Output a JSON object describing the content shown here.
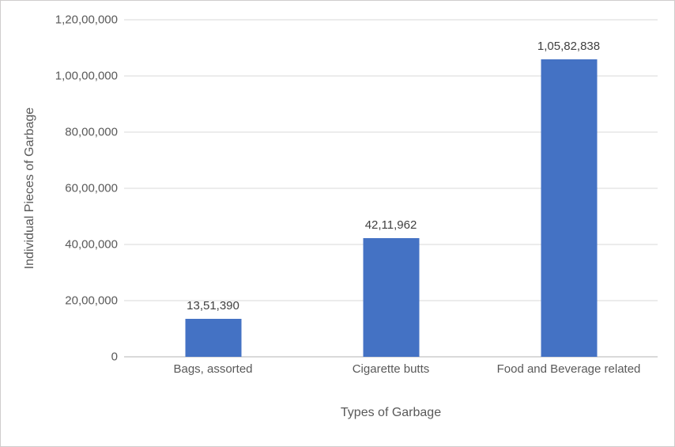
{
  "chart_data": {
    "type": "bar",
    "title": "",
    "xlabel": "Types of Garbage",
    "ylabel": "Individual Pieces of Garbage",
    "categories": [
      "Bags, assorted",
      "Cigarette butts",
      "Food and Beverage related"
    ],
    "values": [
      1351390,
      4211962,
      10582838
    ],
    "value_labels": [
      "13,51,390",
      "42,11,962",
      "1,05,82,838"
    ],
    "ylim": [
      0,
      12000000
    ],
    "yticks": [
      {
        "value": 0,
        "label": "0"
      },
      {
        "value": 2000000,
        "label": "20,00,000"
      },
      {
        "value": 4000000,
        "label": "40,00,000"
      },
      {
        "value": 6000000,
        "label": "60,00,000"
      },
      {
        "value": 8000000,
        "label": "80,00,000"
      },
      {
        "value": 10000000,
        "label": "1,00,00,000"
      },
      {
        "value": 12000000,
        "label": "1,20,00,000"
      }
    ],
    "grid": true,
    "legend": "none",
    "number_format": "indian",
    "colors": {
      "bar": "#4472C4",
      "gridline": "#d9d9d9",
      "axis_line": "#d9d9d9",
      "tick_label": "#595959",
      "data_label": "#404040",
      "axis_title": "#595959",
      "frame_border": "#cfcdcd",
      "background": "#ffffff"
    }
  }
}
